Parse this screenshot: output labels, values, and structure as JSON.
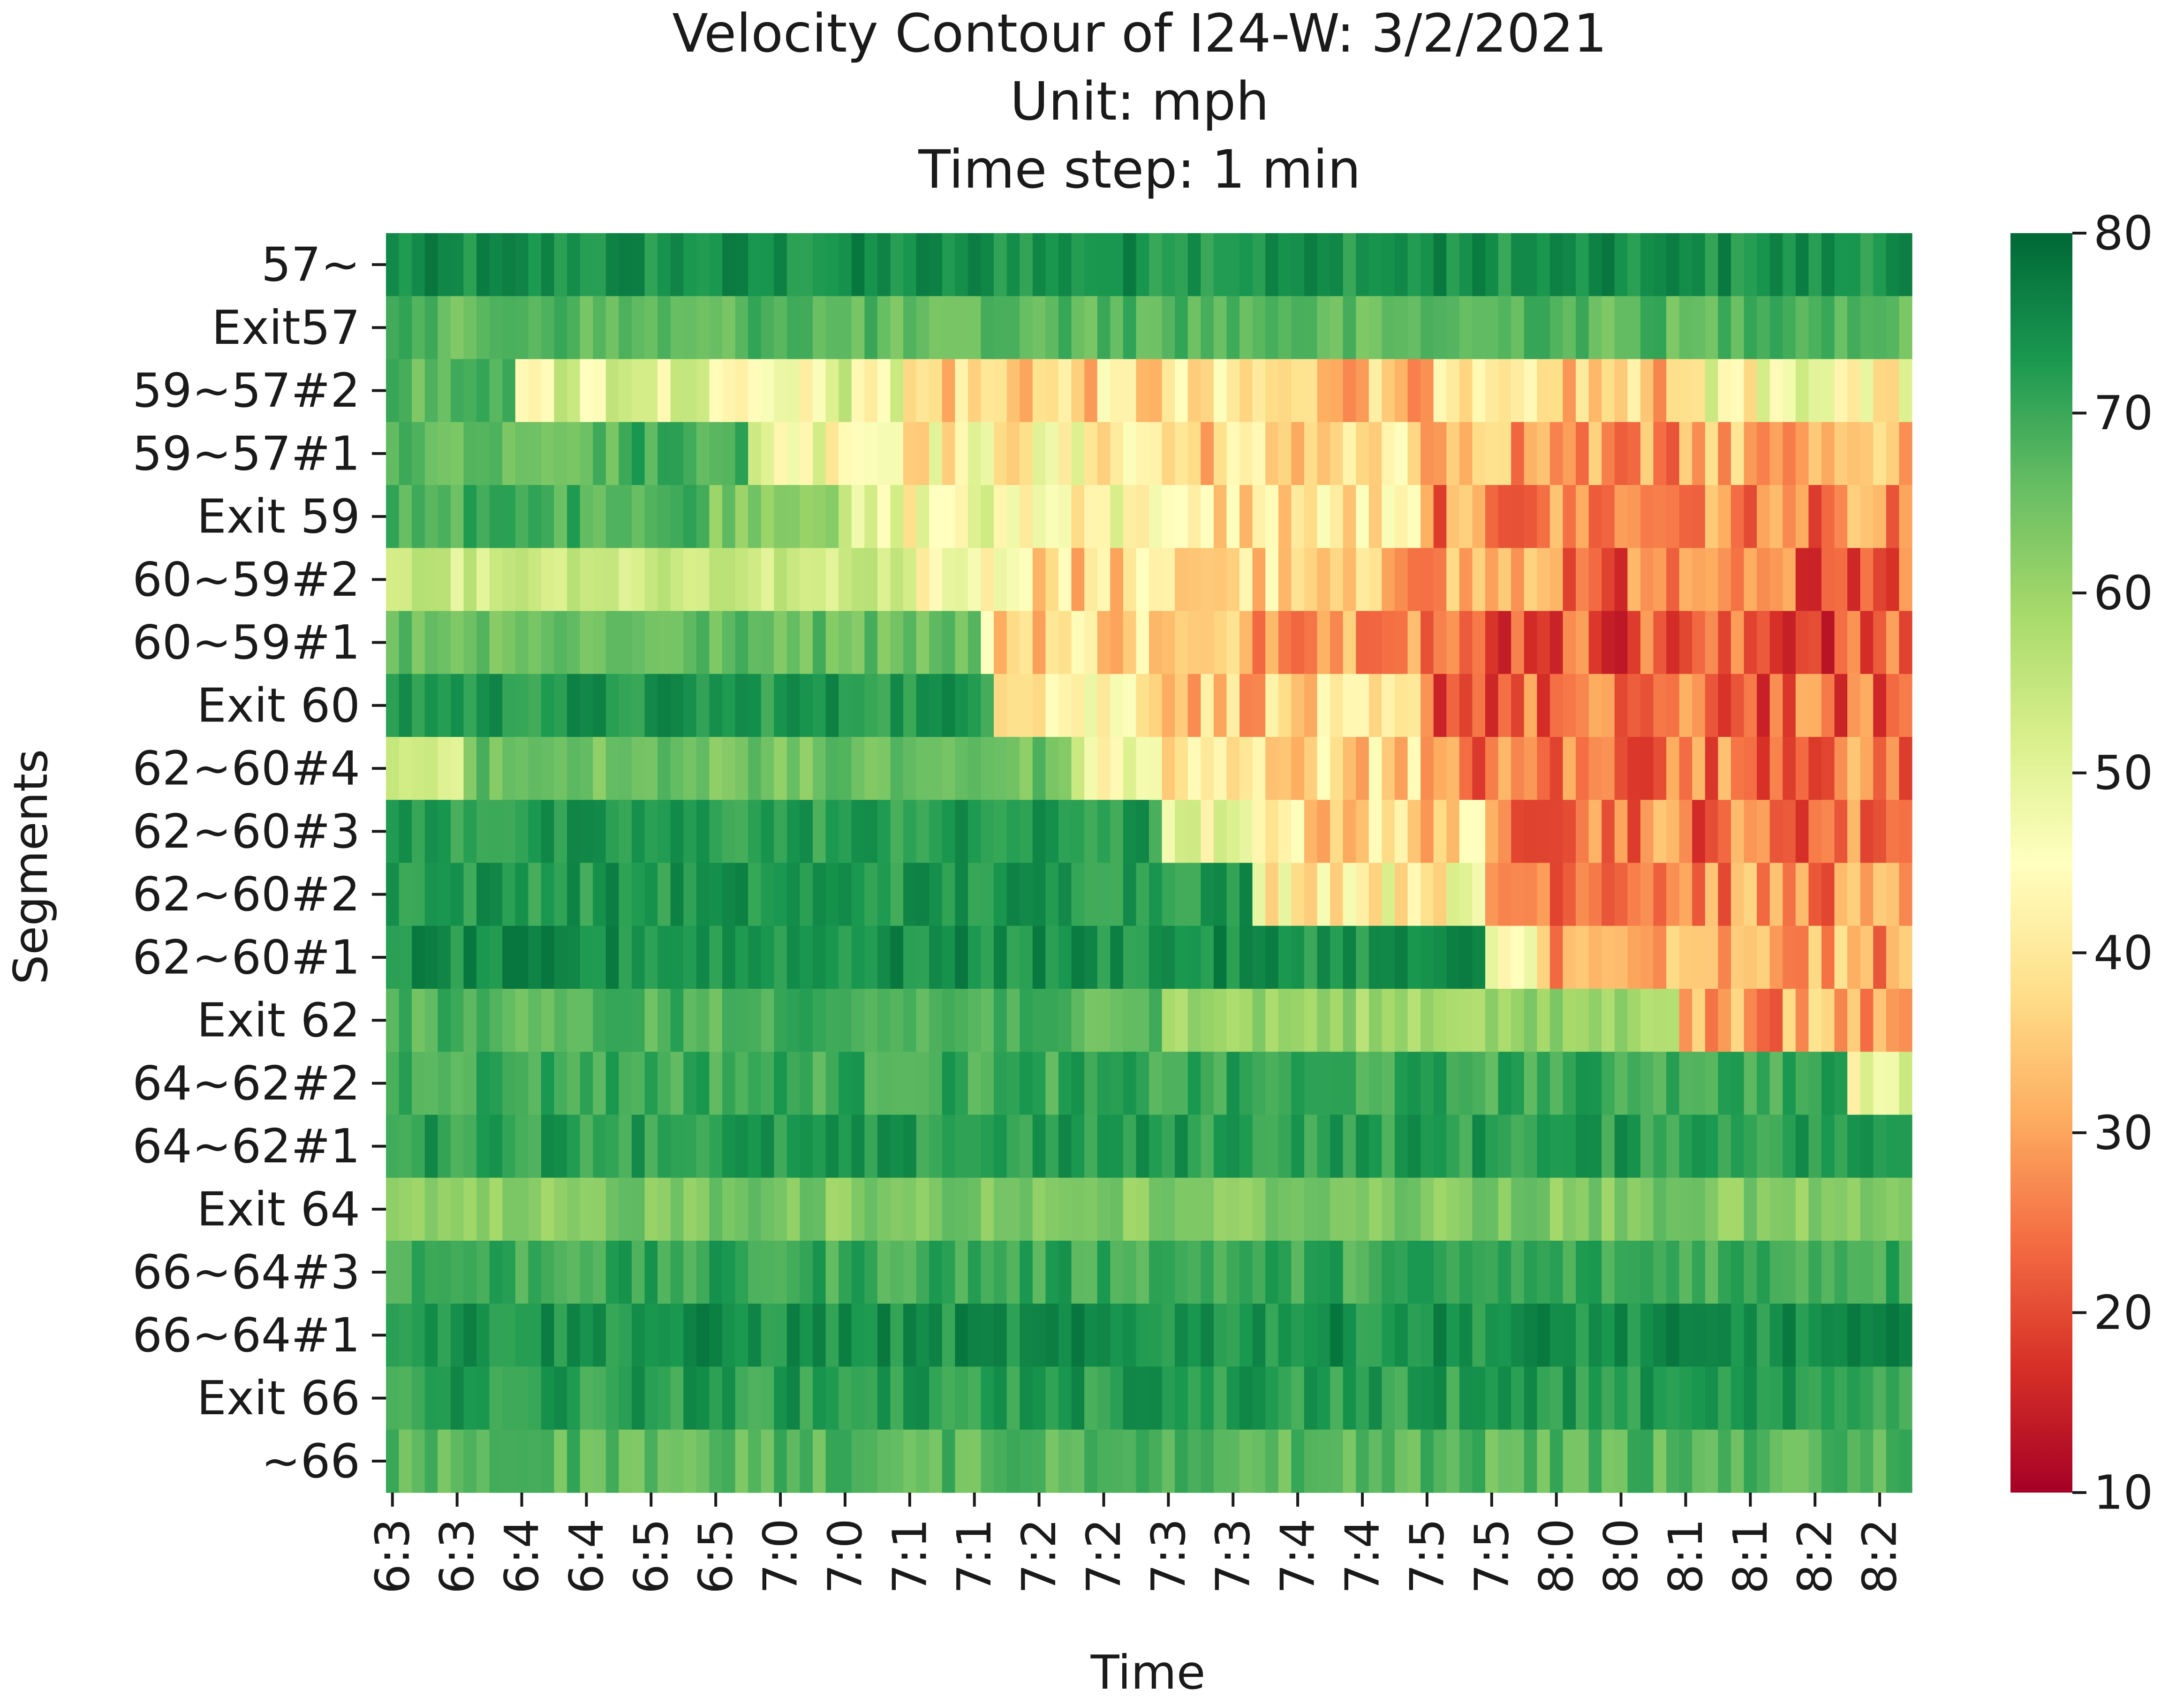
{
  "chart_data": {
    "type": "heatmap",
    "title_lines": [
      "Velocity Contour of I24-W: 3/2/2021",
      "Unit: mph",
      "Time step: 1 min"
    ],
    "xlabel": "Time",
    "ylabel": "Segments",
    "x_tick_labels": [
      "6:3",
      "6:3",
      "6:4",
      "6:4",
      "6:5",
      "6:5",
      "7:0",
      "7:0",
      "7:1",
      "7:1",
      "7:2",
      "7:2",
      "7:3",
      "7:3",
      "7:4",
      "7:4",
      "7:5",
      "7:5",
      "8:0",
      "8:0",
      "8:1",
      "8:1",
      "8:2",
      "8:2"
    ],
    "rows": [
      "57~",
      "Exit57",
      "59~57#2",
      "59~57#1",
      "Exit 59",
      "60~59#2",
      "60~59#1",
      "Exit 60",
      "62~60#4",
      "62~60#3",
      "62~60#2",
      "62~60#1",
      "Exit 62",
      "64~62#2",
      "64~62#1",
      "Exit 64",
      "66~64#3",
      "66~64#1",
      "Exit 66",
      "~66"
    ],
    "n_time_steps": 118,
    "time_step_minutes": 1,
    "colorbar": {
      "min": 10,
      "max": 80,
      "ticks": [
        "10",
        "20",
        "30",
        "40",
        "50",
        "60",
        "70",
        "80"
      ],
      "colormap": "RdYlGn"
    },
    "row_profiles": [
      {
        "segment": "57~",
        "speeds_mph": [
          {
            "from": 0,
            "to": 117,
            "mph": 74
          }
        ]
      },
      {
        "segment": "Exit57",
        "speeds_mph": [
          {
            "from": 0,
            "to": 117,
            "mph": 67
          }
        ]
      },
      {
        "segment": "59~57#2",
        "speeds_mph": [
          {
            "from": 0,
            "to": 9,
            "mph": 67
          },
          {
            "from": 10,
            "to": 39,
            "mph": 49
          },
          {
            "from": 40,
            "to": 69,
            "mph": 37
          },
          {
            "from": 70,
            "to": 99,
            "mph": 35
          },
          {
            "from": 100,
            "to": 117,
            "mph": 45
          }
        ]
      },
      {
        "segment": "59~57#1",
        "speeds_mph": [
          {
            "from": 0,
            "to": 17,
            "mph": 67
          },
          {
            "from": 18,
            "to": 27,
            "mph": 70
          },
          {
            "from": 28,
            "to": 39,
            "mph": 48
          },
          {
            "from": 40,
            "to": 59,
            "mph": 43
          },
          {
            "from": 60,
            "to": 79,
            "mph": 37
          },
          {
            "from": 80,
            "to": 99,
            "mph": 30
          },
          {
            "from": 100,
            "to": 117,
            "mph": 31
          }
        ]
      },
      {
        "segment": "Exit 59",
        "speeds_mph": [
          {
            "from": 0,
            "to": 24,
            "mph": 69
          },
          {
            "from": 25,
            "to": 34,
            "mph": 64
          },
          {
            "from": 35,
            "to": 59,
            "mph": 46
          },
          {
            "from": 60,
            "to": 79,
            "mph": 39
          },
          {
            "from": 80,
            "to": 117,
            "mph": 27
          }
        ]
      },
      {
        "segment": "60~59#2",
        "speeds_mph": [
          {
            "from": 0,
            "to": 39,
            "mph": 53
          },
          {
            "from": 40,
            "to": 49,
            "mph": 48
          },
          {
            "from": 50,
            "to": 69,
            "mph": 37
          },
          {
            "from": 70,
            "to": 89,
            "mph": 32
          },
          {
            "from": 90,
            "to": 117,
            "mph": 24
          }
        ]
      },
      {
        "segment": "60~59#1",
        "speeds_mph": [
          {
            "from": 0,
            "to": 45,
            "mph": 66
          },
          {
            "from": 46,
            "to": 59,
            "mph": 38
          },
          {
            "from": 60,
            "to": 79,
            "mph": 32
          },
          {
            "from": 80,
            "to": 99,
            "mph": 22
          },
          {
            "from": 100,
            "to": 117,
            "mph": 21
          }
        ]
      },
      {
        "segment": "Exit 60",
        "speeds_mph": [
          {
            "from": 0,
            "to": 46,
            "mph": 73
          },
          {
            "from": 47,
            "to": 59,
            "mph": 44
          },
          {
            "from": 60,
            "to": 79,
            "mph": 35
          },
          {
            "from": 80,
            "to": 99,
            "mph": 23
          },
          {
            "from": 100,
            "to": 117,
            "mph": 23
          }
        ]
      },
      {
        "segment": "62~60#4",
        "speeds_mph": [
          {
            "from": 0,
            "to": 5,
            "mph": 54
          },
          {
            "from": 6,
            "to": 52,
            "mph": 65
          },
          {
            "from": 53,
            "to": 59,
            "mph": 46
          },
          {
            "from": 60,
            "to": 79,
            "mph": 38
          },
          {
            "from": 80,
            "to": 99,
            "mph": 25
          },
          {
            "from": 100,
            "to": 117,
            "mph": 26
          }
        ]
      },
      {
        "segment": "62~60#3",
        "speeds_mph": [
          {
            "from": 0,
            "to": 59,
            "mph": 72
          },
          {
            "from": 60,
            "to": 69,
            "mph": 46
          },
          {
            "from": 70,
            "to": 84,
            "mph": 37
          },
          {
            "from": 85,
            "to": 99,
            "mph": 27
          },
          {
            "from": 100,
            "to": 117,
            "mph": 25
          }
        ]
      },
      {
        "segment": "62~60#2",
        "speeds_mph": [
          {
            "from": 0,
            "to": 66,
            "mph": 73
          },
          {
            "from": 67,
            "to": 84,
            "mph": 44
          },
          {
            "from": 85,
            "to": 117,
            "mph": 28
          }
        ]
      },
      {
        "segment": "62~60#1",
        "speeds_mph": [
          {
            "from": 0,
            "to": 84,
            "mph": 74
          },
          {
            "from": 85,
            "to": 89,
            "mph": 45
          },
          {
            "from": 90,
            "to": 117,
            "mph": 30
          }
        ]
      },
      {
        "segment": "Exit 62",
        "speeds_mph": [
          {
            "from": 0,
            "to": 59,
            "mph": 68
          },
          {
            "from": 60,
            "to": 99,
            "mph": 60
          },
          {
            "from": 100,
            "to": 117,
            "mph": 30
          }
        ]
      },
      {
        "segment": "64~62#2",
        "speeds_mph": [
          {
            "from": 0,
            "to": 112,
            "mph": 70
          },
          {
            "from": 113,
            "to": 117,
            "mph": 48
          }
        ]
      },
      {
        "segment": "64~62#1",
        "speeds_mph": [
          {
            "from": 0,
            "to": 117,
            "mph": 72
          }
        ]
      },
      {
        "segment": "Exit 64",
        "speeds_mph": [
          {
            "from": 0,
            "to": 117,
            "mph": 63
          }
        ]
      },
      {
        "segment": "66~64#3",
        "speeds_mph": [
          {
            "from": 0,
            "to": 117,
            "mph": 70
          }
        ]
      },
      {
        "segment": "66~64#1",
        "speeds_mph": [
          {
            "from": 0,
            "to": 117,
            "mph": 74
          }
        ]
      },
      {
        "segment": "Exit 66",
        "speeds_mph": [
          {
            "from": 0,
            "to": 117,
            "mph": 72
          }
        ]
      },
      {
        "segment": "~66",
        "speeds_mph": [
          {
            "from": 0,
            "to": 117,
            "mph": 67
          }
        ]
      }
    ],
    "grid": false,
    "legend": "colorbar-right"
  }
}
